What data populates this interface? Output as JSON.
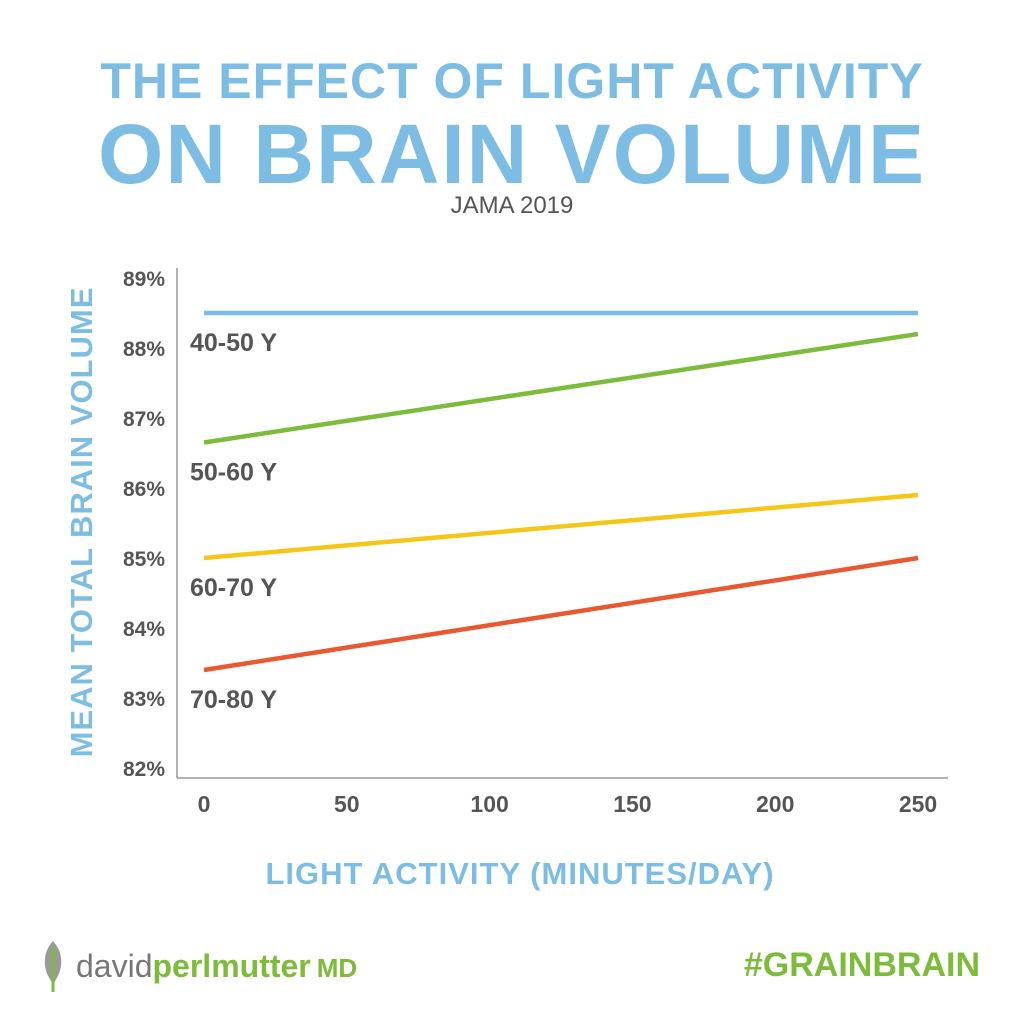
{
  "header": {
    "title_line1": "THE EFFECT OF LIGHT ACTIVITY",
    "title_line2": "ON BRAIN VOLUME",
    "source": "JAMA 2019"
  },
  "chart_data": {
    "type": "line",
    "xlabel": "LIGHT ACTIVITY (MINUTES/DAY)",
    "ylabel": "MEAN TOTAL BRAIN VOLUME",
    "xlim": [
      0,
      250
    ],
    "ylim": [
      82,
      89
    ],
    "x_ticks": [
      "0",
      "50",
      "100",
      "150",
      "200",
      "250"
    ],
    "x_tick_values": [
      0,
      50,
      100,
      150,
      200,
      250
    ],
    "y_ticks": [
      "82%",
      "83%",
      "84%",
      "85%",
      "86%",
      "87%",
      "88%",
      "89%"
    ],
    "y_tick_values": [
      82,
      83,
      84,
      85,
      86,
      87,
      88,
      89
    ],
    "grid": false,
    "series": [
      {
        "name": "40-50 Y",
        "x": [
          0,
          250
        ],
        "y": [
          88.5,
          88.5
        ],
        "color": "#7dbde3"
      },
      {
        "name": "50-60 Y",
        "x": [
          0,
          250
        ],
        "y": [
          86.65,
          88.2
        ],
        "color": "#7dbb3b"
      },
      {
        "name": "60-70 Y",
        "x": [
          0,
          250
        ],
        "y": [
          85.0,
          85.9
        ],
        "color": "#f5c518"
      },
      {
        "name": "70-80 Y",
        "x": [
          0,
          250
        ],
        "y": [
          83.4,
          85.0
        ],
        "color": "#e9582f"
      }
    ]
  },
  "footer": {
    "brand_first": "david",
    "brand_last": "perlmutter",
    "brand_suffix": "MD",
    "hashtag": "#GRAINBRAIN"
  },
  "colors": {
    "accent_blue": "#7dbde3",
    "brand_green": "#7dbb3b",
    "text_gray": "#555555"
  }
}
